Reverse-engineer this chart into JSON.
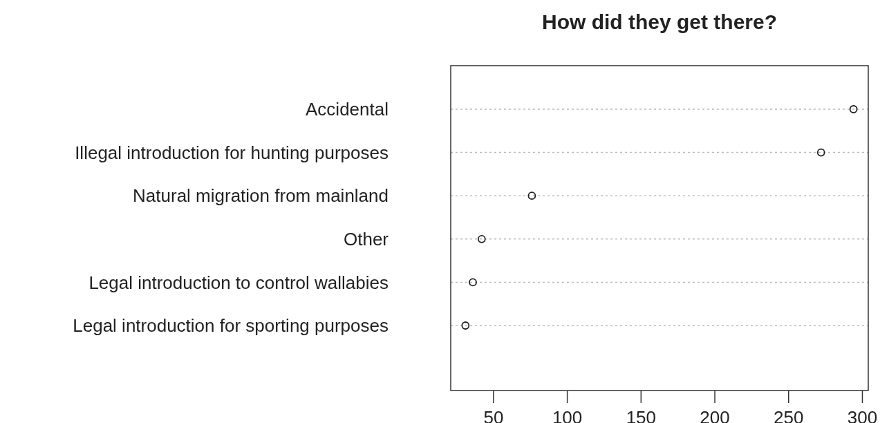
{
  "chart_data": {
    "type": "scatter",
    "orientation": "horizontal",
    "title": "How did they get there?",
    "categories": [
      "Accidental",
      "Illegal introduction for hunting purposes",
      "Natural migration from mainland",
      "Other",
      "Legal introduction to control wallabies",
      "Legal introduction for sporting purposes"
    ],
    "values": [
      294,
      272,
      76,
      42,
      36,
      31
    ],
    "color": "#222222",
    "marker": "circle",
    "grid": "y",
    "xlim": [
      21,
      304
    ],
    "xticks": [
      50,
      100,
      150,
      200,
      250,
      300
    ]
  }
}
